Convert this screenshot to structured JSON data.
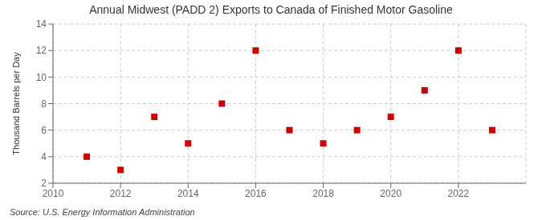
{
  "chart_data": {
    "type": "scatter",
    "title": "Annual Midwest (PADD 2) Exports to Canada of Finished Motor Gasoline",
    "ylabel": "Thousand Barrels per Day",
    "annotation": "Source: U.S. Energy Information Administration",
    "x": [
      2011,
      2012,
      2013,
      2014,
      2015,
      2016,
      2017,
      2018,
      2019,
      2020,
      2021,
      2022,
      2023
    ],
    "values": [
      4,
      3,
      7,
      5,
      8,
      12,
      6,
      5,
      6,
      7,
      9,
      12,
      6
    ],
    "color": "#cc0000",
    "marker": "square",
    "xlim": [
      2010,
      2024
    ],
    "ylim": [
      2,
      14
    ],
    "xticks": [
      2010,
      2012,
      2014,
      2016,
      2018,
      2020,
      2022
    ],
    "yticks": [
      2,
      4,
      6,
      8,
      10,
      12,
      14
    ],
    "grid": true
  }
}
